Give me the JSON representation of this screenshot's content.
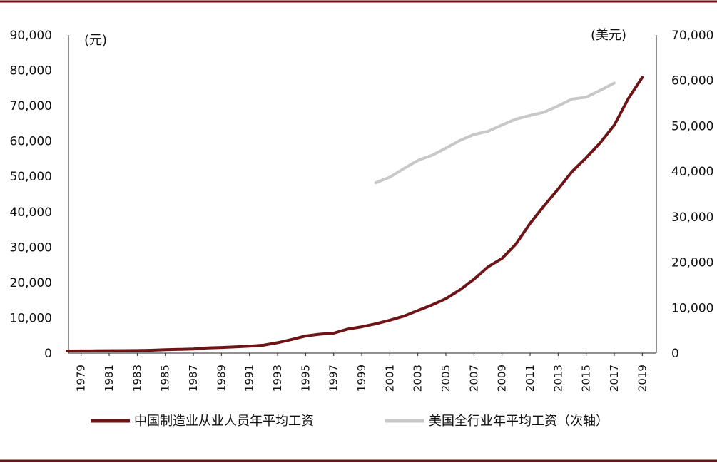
{
  "colors": {
    "frame": "#6e1416",
    "series_china": "#6e1416",
    "series_us": "#c8c8c8",
    "axis": "#222222"
  },
  "chart_data": {
    "type": "line",
    "left_unit": "(元)",
    "right_unit": "(美元)",
    "left_ticks": [
      "0",
      "10,000",
      "20,000",
      "30,000",
      "40,000",
      "50,000",
      "60,000",
      "70,000",
      "80,000",
      "90,000"
    ],
    "right_ticks": [
      "0",
      "10,000",
      "20,000",
      "30,000",
      "40,000",
      "50,000",
      "60,000",
      "70,000"
    ],
    "x_tick_labels": [
      "1979",
      "1981",
      "1983",
      "1985",
      "1987",
      "1989",
      "1991",
      "1993",
      "1995",
      "1997",
      "1999",
      "2001",
      "2003",
      "2005",
      "2007",
      "2009",
      "2011",
      "2013",
      "2015",
      "2017",
      "2019"
    ],
    "ylim_left": [
      0,
      90000
    ],
    "ylim_right": [
      0,
      70000
    ],
    "xlim": [
      1978.1,
      2020.0
    ],
    "grid": false,
    "legend_position": "bottom",
    "series": [
      {
        "name": "中国制造业从业人员年平均工资",
        "axis": "left",
        "x": [
          1978,
          1979,
          1980,
          1981,
          1982,
          1983,
          1984,
          1985,
          1986,
          1987,
          1988,
          1989,
          1990,
          1991,
          1992,
          1993,
          1994,
          1995,
          1996,
          1997,
          1998,
          1999,
          2000,
          2001,
          2002,
          2003,
          2004,
          2005,
          2006,
          2007,
          2008,
          2009,
          2010,
          2011,
          2012,
          2013,
          2014,
          2015,
          2016,
          2017,
          2018,
          2019
        ],
        "values": [
          600,
          620,
          650,
          680,
          700,
          720,
          800,
          950,
          1050,
          1150,
          1450,
          1600,
          1750,
          1950,
          2250,
          2950,
          3850,
          4850,
          5350,
          5650,
          6800,
          7450,
          8300,
          9300,
          10450,
          12050,
          13600,
          15400,
          17900,
          20900,
          24400,
          26800,
          30900,
          36700,
          41700,
          46400,
          51400,
          55300,
          59500,
          64500,
          72000,
          78000
        ]
      },
      {
        "name": "美国全行业年平均工资（次轴）",
        "axis": "right",
        "x": [
          2000,
          2001,
          2002,
          2003,
          2004,
          2005,
          2006,
          2007,
          2008,
          2009,
          2010,
          2011,
          2012,
          2013,
          2014,
          2015,
          2016,
          2017
        ],
        "values": [
          37500,
          38700,
          40600,
          42400,
          43500,
          45100,
          46800,
          48100,
          48800,
          50200,
          51500,
          52300,
          53000,
          54400,
          55900,
          56300,
          57800,
          59400
        ]
      }
    ]
  }
}
